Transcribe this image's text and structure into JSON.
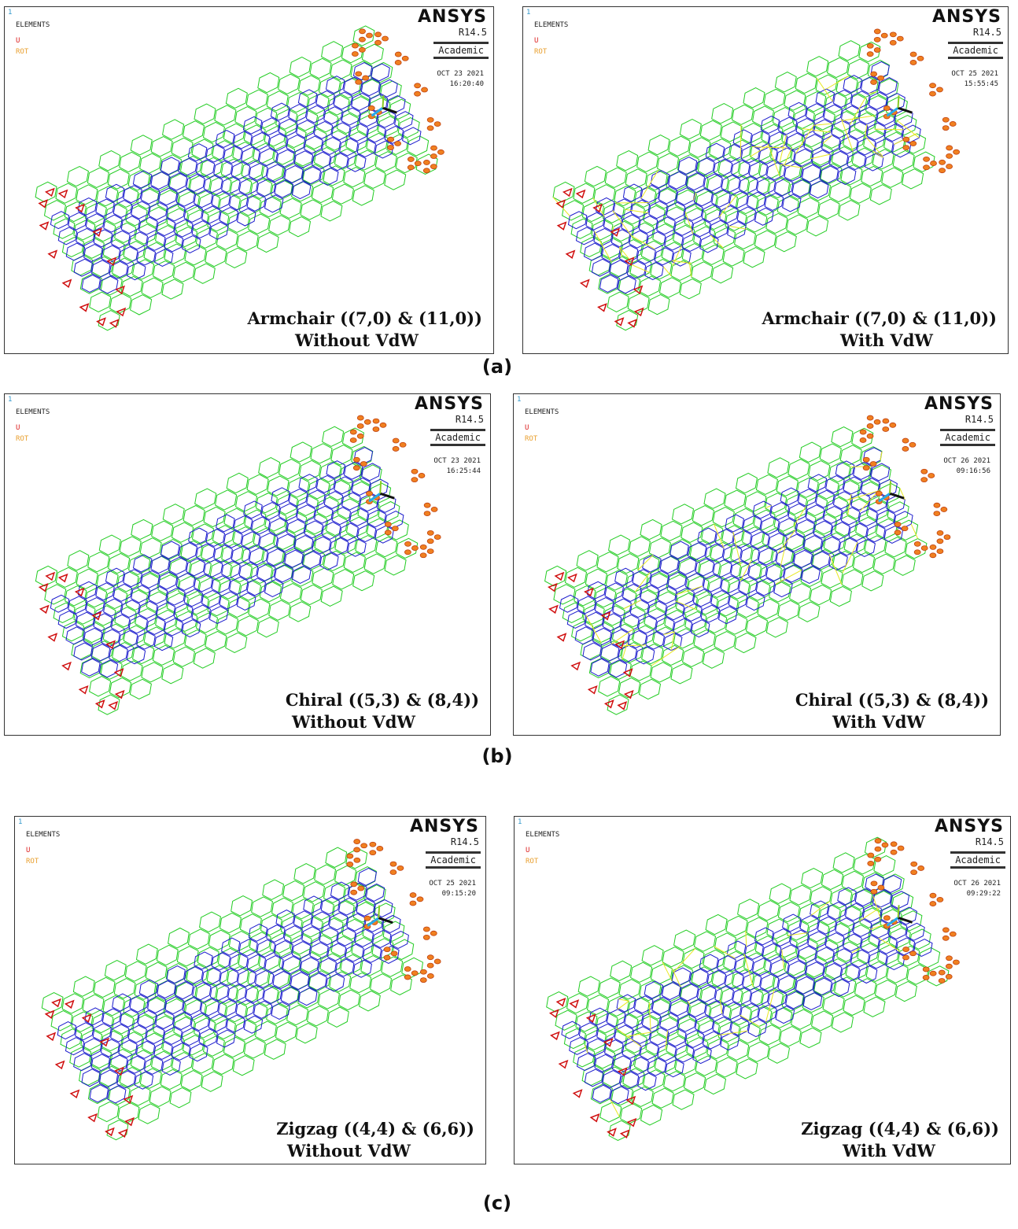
{
  "groups": [
    {
      "label": "(a)",
      "panels": [
        {
          "window": "1",
          "legend": "ELEMENTS",
          "u": "U",
          "rot": "ROT",
          "brand": "ANSYS",
          "release": "R14.5",
          "edition": "Academic",
          "date": "OCT 23 2021",
          "time": "16:20:40",
          "caption": "Armchair ((7,0) & (11,0))",
          "subcaption": "Without VdW"
        },
        {
          "window": "1",
          "legend": "ELEMENTS",
          "u": "U",
          "rot": "ROT",
          "brand": "ANSYS",
          "release": "R14.5",
          "edition": "Academic",
          "date": "OCT 25 2021",
          "time": "15:55:45",
          "caption": "Armchair ((7,0) & (11,0))",
          "subcaption": "With VdW"
        }
      ]
    },
    {
      "label": "(b)",
      "panels": [
        {
          "window": "1",
          "legend": "ELEMENTS",
          "u": "U",
          "rot": "ROT",
          "brand": "ANSYS",
          "release": "R14.5",
          "edition": "Academic",
          "date": "OCT 23 2021",
          "time": "16:25:44",
          "caption": "Chiral ((5,3) & (8,4))",
          "subcaption": "Without VdW"
        },
        {
          "window": "1",
          "legend": "ELEMENTS",
          "u": "U",
          "rot": "ROT",
          "brand": "ANSYS",
          "release": "R14.5",
          "edition": "Academic",
          "date": "OCT 26 2021",
          "time": "09:16:56",
          "caption": "Chiral ((5,3) & (8,4))",
          "subcaption": "With VdW"
        }
      ]
    },
    {
      "label": "(c)",
      "panels": [
        {
          "window": "1",
          "legend": "ELEMENTS",
          "u": "U",
          "rot": "ROT",
          "brand": "ANSYS",
          "release": "R14.5",
          "edition": "Academic",
          "date": "OCT 25 2021",
          "time": "09:15:20",
          "caption": "Zigzag ((4,4) & (6,6))",
          "subcaption": "Without VdW"
        },
        {
          "window": "1",
          "legend": "ELEMENTS",
          "u": "U",
          "rot": "ROT",
          "brand": "ANSYS",
          "release": "R14.5",
          "edition": "Academic",
          "date": "OCT 26 2021",
          "time": "09:29:22",
          "caption": "Zigzag ((4,4) & (6,6))",
          "subcaption": "With VdW"
        }
      ]
    }
  ]
}
